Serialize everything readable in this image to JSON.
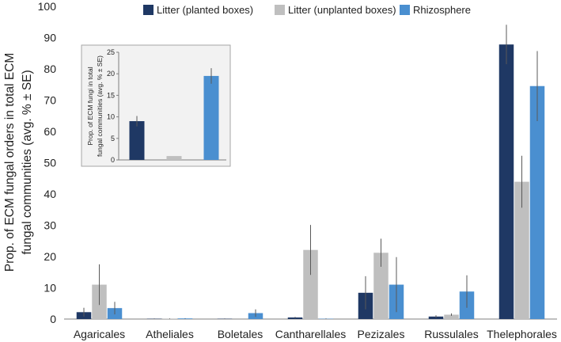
{
  "chart_data": [
    {
      "type": "bar",
      "title": "",
      "ylabel_lines": [
        "Prop. of ECM fungal orders in total ECM",
        "fungal communities (avg. % ± SE)"
      ],
      "xlabel": "",
      "ylim": [
        0,
        100
      ],
      "yticks": [
        0,
        10,
        20,
        30,
        40,
        50,
        60,
        70,
        80,
        90,
        100
      ],
      "grid": false,
      "legend_position": "top",
      "categories": [
        "Agaricales",
        "Atheliales",
        "Boletales",
        "Cantharellales",
        "Pezizales",
        "Russulales",
        "Thelephorales"
      ],
      "series": [
        {
          "name": "Litter (planted boxes)",
          "color": "#1f3864",
          "values": [
            2.2,
            0.1,
            0.1,
            0.5,
            8.4,
            0.8,
            87.8
          ],
          "errors": [
            1.4,
            0.1,
            0.1,
            0.2,
            5.3,
            0.4,
            6.3
          ]
        },
        {
          "name": "Litter (unplanted boxes)",
          "color": "#bfbfbf",
          "values": [
            11.0,
            0.1,
            0.0,
            22.1,
            21.2,
            1.4,
            43.9
          ],
          "errors": [
            6.5,
            0.1,
            0.0,
            8.0,
            4.5,
            0.4,
            8.3
          ]
        },
        {
          "name": "Rhizosphere",
          "color": "#4a8fd0",
          "values": [
            3.5,
            0.2,
            1.9,
            0.1,
            11.0,
            8.8,
            74.5
          ],
          "errors": [
            2.0,
            0.1,
            1.2,
            0.1,
            8.8,
            5.2,
            11.2
          ]
        }
      ]
    },
    {
      "type": "bar",
      "title": "",
      "ylabel_lines": [
        "Prop. of ECM fungi in total",
        "fungal communities (avg. % ± SE)"
      ],
      "ylim": [
        0,
        25
      ],
      "yticks": [
        0,
        5,
        10,
        15,
        20,
        25
      ],
      "categories": [
        "Litter (planted boxes)",
        "Litter (unplanted boxes)",
        "Rhizosphere"
      ],
      "values": [
        9.0,
        0.9,
        19.5
      ],
      "errors": [
        1.2,
        0.2,
        1.8
      ],
      "colors": [
        "#1f3864",
        "#bfbfbf",
        "#4a8fd0"
      ]
    }
  ]
}
